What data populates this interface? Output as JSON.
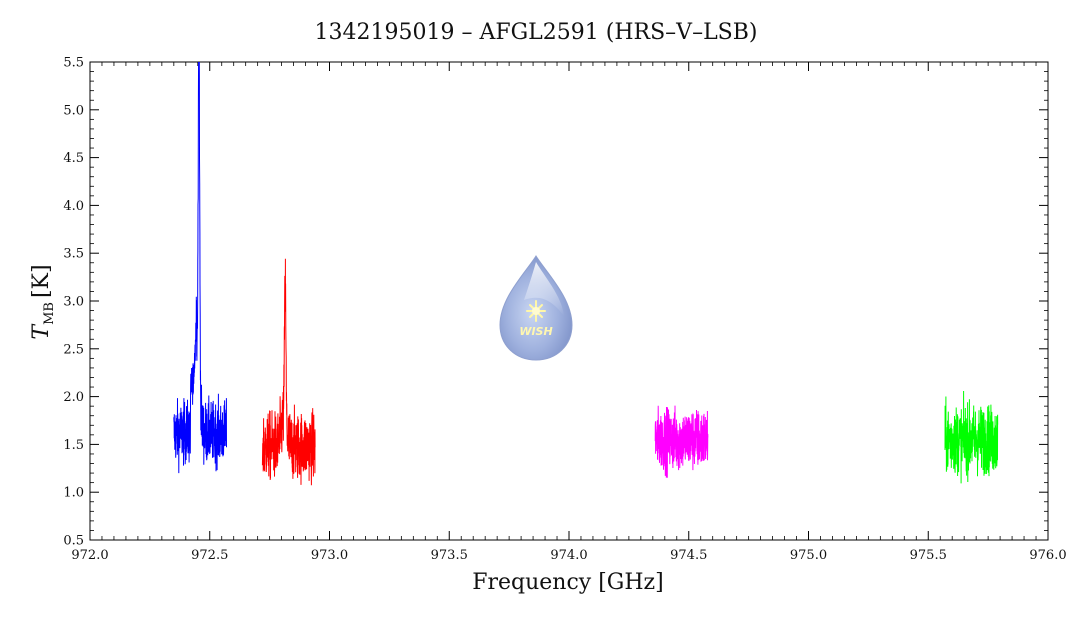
{
  "chart_data": {
    "type": "line",
    "title": "1342195019 – AFGL2591 (HRS–V–LSB)",
    "xlabel": "Frequency [GHz]",
    "ylabel": "T",
    "ylabel_sub": "MB",
    "ylabel_unit": "[K]",
    "xlim": [
      972.0,
      976.0
    ],
    "ylim": [
      0.5,
      5.5
    ],
    "xticks": [
      "972.0",
      "972.5",
      "973.0",
      "973.5",
      "974.0",
      "974.5",
      "975.0",
      "975.5",
      "976.0"
    ],
    "yticks": [
      "0.5",
      "1.0",
      "1.5",
      "2.0",
      "2.5",
      "3.0",
      "3.5",
      "4.0",
      "4.5",
      "5.0",
      "5.5"
    ],
    "grid": false,
    "logo_text": "WISH",
    "series": [
      {
        "color": "#0000ff",
        "x_range": [
          972.35,
          972.57
        ],
        "baseline": 1.62,
        "noise": 0.55,
        "peaks": [
          {
            "x": 972.455,
            "amplitude": 3.6,
            "width": 0.004
          },
          {
            "x": 972.45,
            "amplitude": 0.9,
            "width": 0.012
          }
        ],
        "gap": [
          972.42,
          972.445
        ]
      },
      {
        "color": "#ff0000",
        "x_range": [
          972.72,
          972.94
        ],
        "baseline": 1.48,
        "noise": 0.6,
        "peaks": [
          {
            "x": 972.815,
            "amplitude": 1.5,
            "width": 0.004
          },
          {
            "x": 972.81,
            "amplitude": 0.3,
            "width": 0.015
          }
        ]
      },
      {
        "color": "#ff00ff",
        "x_range": [
          974.36,
          974.58
        ],
        "baseline": 1.55,
        "noise": 0.55,
        "peaks": []
      },
      {
        "color": "#00ff00",
        "x_range": [
          975.57,
          975.79
        ],
        "baseline": 1.55,
        "noise": 0.6,
        "peaks": []
      }
    ]
  }
}
